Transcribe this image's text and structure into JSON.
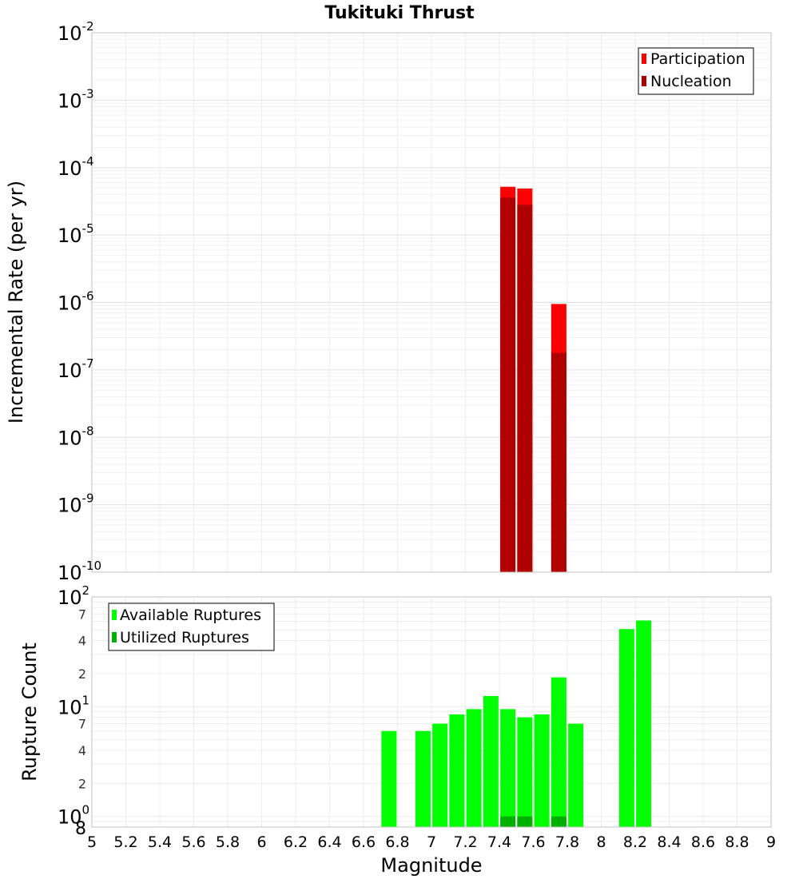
{
  "chart_data": [
    {
      "type": "bar",
      "title": "Tukituki Thrust",
      "xlabel": "",
      "ylabel": "Incremental Rate (per yr)",
      "yscale": "log",
      "xlim": [
        5,
        9
      ],
      "ylim": [
        1e-10,
        0.01
      ],
      "grid": true,
      "legend_position": "top-right",
      "y_tick_labels": [
        {
          "base": "10",
          "exp": "-10"
        },
        {
          "base": "10",
          "exp": "-9"
        },
        {
          "base": "10",
          "exp": "-8"
        },
        {
          "base": "10",
          "exp": "-7"
        },
        {
          "base": "10",
          "exp": "-6"
        },
        {
          "base": "10",
          "exp": "-5"
        },
        {
          "base": "10",
          "exp": "-4"
        },
        {
          "base": "10",
          "exp": "-3"
        },
        {
          "base": "10",
          "exp": "-2"
        }
      ],
      "series": [
        {
          "name": "Participation",
          "color": "#ff0000",
          "x": [
            7.45,
            7.55,
            7.75
          ],
          "values": [
            5.2e-05,
            4.9e-05,
            9.5e-07
          ]
        },
        {
          "name": "Nucleation",
          "color": "#b00000",
          "x": [
            7.45,
            7.55,
            7.75
          ],
          "values": [
            3.6e-05,
            2.8e-05,
            1.8e-07
          ]
        }
      ]
    },
    {
      "type": "bar",
      "title": "",
      "xlabel": "Magnitude",
      "ylabel": "Rupture Count",
      "yscale": "log",
      "xlim": [
        5,
        9
      ],
      "ylim": [
        0.8,
        100
      ],
      "grid": true,
      "legend_position": "top-left",
      "x_ticks": [
        "5",
        "5.2",
        "5.4",
        "5.6",
        "5.8",
        "6",
        "6.2",
        "6.4",
        "6.6",
        "6.8",
        "7",
        "7.2",
        "7.4",
        "7.6",
        "7.8",
        "8",
        "8.2",
        "8.4",
        "8.6",
        "8.8",
        "9"
      ],
      "y_tick_labels": [
        {
          "base": "8",
          "exp": ""
        },
        {
          "base": "10",
          "exp": "0"
        },
        {
          "base": "2",
          "exp": ""
        },
        {
          "base": "4",
          "exp": ""
        },
        {
          "base": "7",
          "exp": ""
        },
        {
          "base": "10",
          "exp": "1"
        },
        {
          "base": "2",
          "exp": ""
        },
        {
          "base": "4",
          "exp": ""
        },
        {
          "base": "7",
          "exp": ""
        },
        {
          "base": "10",
          "exp": "2"
        }
      ],
      "series": [
        {
          "name": "Available Ruptures",
          "color": "#00ff00",
          "x": [
            6.75,
            6.95,
            7.05,
            7.15,
            7.25,
            7.35,
            7.45,
            7.55,
            7.65,
            7.75,
            7.85,
            8.15,
            8.25
          ],
          "values": [
            6,
            6,
            7,
            8.5,
            9.5,
            12.5,
            9.5,
            8,
            8.5,
            18.5,
            7,
            51,
            61
          ]
        },
        {
          "name": "Utilized Ruptures",
          "color": "#00b000",
          "x": [
            7.45,
            7.55,
            7.75
          ],
          "values": [
            1,
            1,
            1
          ]
        }
      ]
    }
  ]
}
